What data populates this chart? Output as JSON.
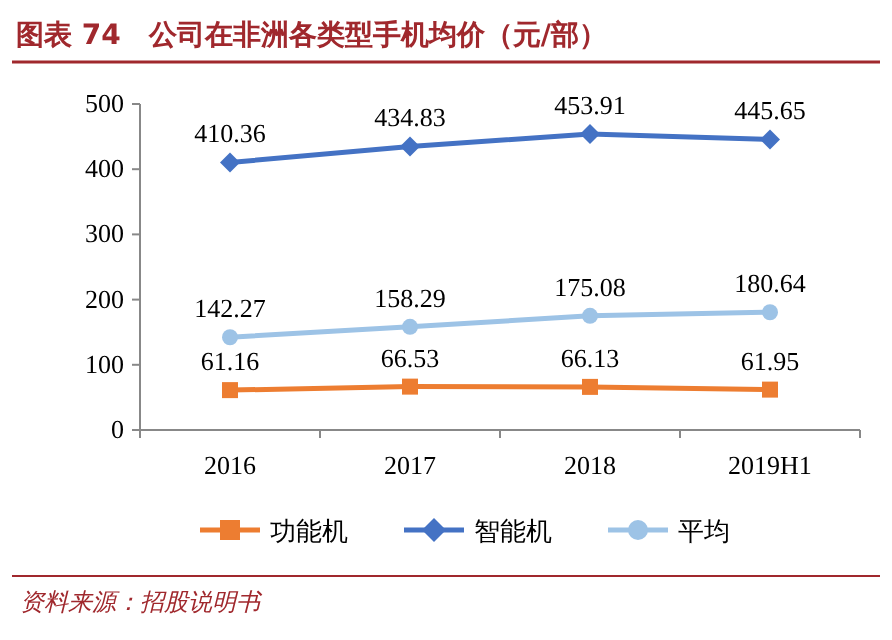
{
  "chart_data": {
    "type": "line",
    "title": "图表 74　公司在非洲各类型手机均价（元/部）",
    "categories": [
      "2016",
      "2017",
      "2018",
      "2019H1"
    ],
    "series": [
      {
        "name": "功能机",
        "color": "#ed7d31",
        "marker": "square",
        "values": [
          61.16,
          66.53,
          66.13,
          61.95
        ]
      },
      {
        "name": "智能机",
        "color": "#4472c4",
        "marker": "diamond",
        "values": [
          410.36,
          434.83,
          453.91,
          445.65
        ]
      },
      {
        "name": "平均",
        "color": "#9dc3e6",
        "marker": "circle",
        "values": [
          142.27,
          158.29,
          175.08,
          180.64
        ]
      }
    ],
    "ylim": [
      0,
      500
    ],
    "yticks": [
      0,
      100,
      200,
      300,
      400,
      500
    ],
    "data_labels": true,
    "legend": "bottom",
    "grid": false,
    "annotations": [
      "资料来源：招股说明书"
    ]
  }
}
